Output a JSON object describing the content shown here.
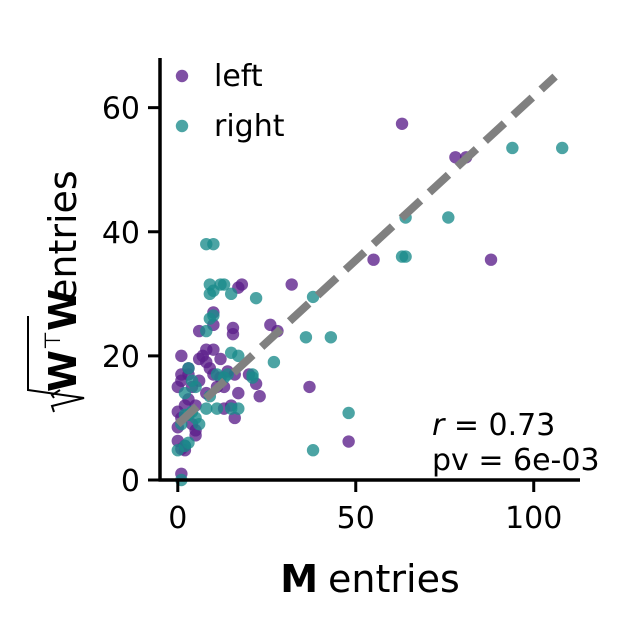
{
  "chart_data": {
    "type": "scatter",
    "xlabel": {
      "bold": "M",
      "rest": "entries"
    },
    "ylabel": {
      "bold": "W",
      "superscript": "⊤",
      "bold2": "W",
      "rest": "entries"
    },
    "xlim": [
      -5,
      113
    ],
    "ylim": [
      0,
      68
    ],
    "xticks": [
      0,
      50,
      100
    ],
    "yticks": [
      0,
      20,
      40,
      60
    ],
    "grid": false,
    "legend_position": "top-left",
    "annotation": {
      "r_symbol": "r",
      "r_text": " = 0.73",
      "pv_text": "pv = 6e-03"
    },
    "fit_line": {
      "x": [
        0,
        106
      ],
      "y": [
        9,
        65
      ],
      "color": "#808080",
      "style": "dashed"
    },
    "series": [
      {
        "name": "left",
        "color": "#5b1f8a",
        "points": [
          [
            63,
            57.4
          ],
          [
            78,
            52
          ],
          [
            81,
            52
          ],
          [
            88,
            35.5
          ],
          [
            55,
            35.5
          ],
          [
            32,
            31.5
          ],
          [
            18,
            31.5
          ],
          [
            17,
            31
          ],
          [
            10,
            27
          ],
          [
            10,
            25
          ],
          [
            26,
            25
          ],
          [
            28,
            24
          ],
          [
            15.5,
            24.5
          ],
          [
            15.5,
            23.5
          ],
          [
            6,
            24
          ],
          [
            6,
            19.5
          ],
          [
            8,
            21
          ],
          [
            10,
            21
          ],
          [
            12,
            19.5
          ],
          [
            14,
            17.5
          ],
          [
            16,
            17
          ],
          [
            20,
            17
          ],
          [
            22,
            15.5
          ],
          [
            23,
            13.5
          ],
          [
            17,
            14
          ],
          [
            13,
            15
          ],
          [
            16,
            10
          ],
          [
            13,
            11.5
          ],
          [
            37,
            15
          ],
          [
            48,
            6.2
          ],
          [
            1,
            20
          ],
          [
            1,
            17
          ],
          [
            3,
            17
          ],
          [
            4,
            15
          ],
          [
            0,
            15
          ],
          [
            1,
            16
          ],
          [
            3,
            13
          ],
          [
            0,
            11
          ],
          [
            2,
            12
          ],
          [
            5,
            12
          ],
          [
            1,
            10
          ],
          [
            4,
            9
          ],
          [
            0,
            8.5
          ],
          [
            5,
            8
          ],
          [
            5,
            7.2
          ],
          [
            0,
            6.3
          ],
          [
            2,
            5.5
          ],
          [
            1,
            5
          ],
          [
            2,
            4.8
          ],
          [
            1,
            1
          ],
          [
            7,
            20
          ],
          [
            8,
            19
          ],
          [
            9,
            18
          ],
          [
            10,
            17
          ],
          [
            11,
            15
          ],
          [
            12,
            16.5
          ],
          [
            15,
            12
          ],
          [
            3,
            18
          ],
          [
            6,
            16
          ],
          [
            8,
            14
          ]
        ]
      },
      {
        "name": "right",
        "color": "#1a8a8a",
        "points": [
          [
            108,
            53.5
          ],
          [
            94,
            53.5
          ],
          [
            76,
            42.3
          ],
          [
            64,
            42.3
          ],
          [
            63,
            36
          ],
          [
            64,
            36
          ],
          [
            8,
            38
          ],
          [
            10,
            38
          ],
          [
            9,
            31.5
          ],
          [
            9,
            30
          ],
          [
            10,
            30.5
          ],
          [
            12,
            31.5
          ],
          [
            13,
            31.5
          ],
          [
            15,
            30
          ],
          [
            22,
            29.3
          ],
          [
            38,
            29.5
          ],
          [
            36,
            23
          ],
          [
            43,
            23
          ],
          [
            9,
            26
          ],
          [
            10,
            26.5
          ],
          [
            8,
            24
          ],
          [
            15,
            20.5
          ],
          [
            17,
            20
          ],
          [
            27,
            19
          ],
          [
            14,
            17
          ],
          [
            21,
            17
          ],
          [
            21,
            16.5
          ],
          [
            11,
            17
          ],
          [
            13,
            16.5
          ],
          [
            38,
            4.8
          ],
          [
            48,
            10.8
          ],
          [
            15,
            11.5
          ],
          [
            17,
            11.5
          ],
          [
            11,
            11.5
          ],
          [
            8,
            11.5
          ],
          [
            9,
            13.5
          ],
          [
            3,
            18
          ],
          [
            4,
            16
          ],
          [
            2,
            14
          ],
          [
            5,
            15
          ],
          [
            3,
            10.5
          ],
          [
            1,
            9
          ],
          [
            4,
            11
          ],
          [
            5,
            10
          ],
          [
            2,
            10.5
          ],
          [
            3,
            6
          ],
          [
            2,
            5.5
          ],
          [
            6,
            9
          ],
          [
            1,
            0
          ],
          [
            0,
            4.8
          ]
        ]
      }
    ]
  }
}
